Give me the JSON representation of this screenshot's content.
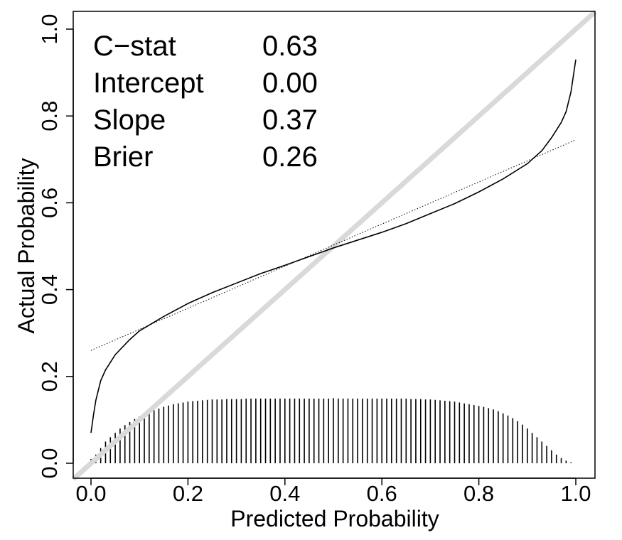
{
  "chart_data": {
    "type": "line",
    "title": "",
    "xlabel": "Predicted Probability",
    "ylabel": "Actual Probability",
    "xlim": [
      0,
      1
    ],
    "ylim": [
      0,
      1
    ],
    "x_ticks": [
      "0.0",
      "0.2",
      "0.4",
      "0.6",
      "0.8",
      "1.0"
    ],
    "y_ticks": [
      "0.0",
      "0.2",
      "0.4",
      "0.6",
      "0.8",
      "1.0"
    ],
    "grid": false,
    "stats": [
      {
        "label": "C−stat",
        "value": "0.63"
      },
      {
        "label": "Intercept",
        "value": "0.00"
      },
      {
        "label": "Slope",
        "value": "0.37"
      },
      {
        "label": "Brier",
        "value": "0.26"
      }
    ],
    "reference_line": {
      "x": [
        0,
        1
      ],
      "y": [
        0,
        1
      ],
      "color": "#d9d9d9"
    },
    "series": [
      {
        "style": "solid",
        "color": "#000000",
        "x": [
          0.0,
          0.005,
          0.01,
          0.02,
          0.03,
          0.05,
          0.08,
          0.1,
          0.15,
          0.2,
          0.25,
          0.3,
          0.35,
          0.4,
          0.45,
          0.5,
          0.55,
          0.6,
          0.65,
          0.7,
          0.75,
          0.8,
          0.85,
          0.9,
          0.93,
          0.95,
          0.97,
          0.98,
          0.99,
          1.0
        ],
        "y": [
          0.07,
          0.11,
          0.145,
          0.19,
          0.215,
          0.25,
          0.285,
          0.305,
          0.338,
          0.368,
          0.393,
          0.415,
          0.437,
          0.456,
          0.476,
          0.496,
          0.514,
          0.532,
          0.552,
          0.575,
          0.598,
          0.625,
          0.655,
          0.69,
          0.72,
          0.75,
          0.785,
          0.81,
          0.855,
          0.93
        ]
      },
      {
        "style": "dotted",
        "color": "#000000",
        "x": [
          0.0,
          1.0
        ],
        "y": [
          0.26,
          0.745
        ]
      }
    ],
    "rug": {
      "x": [
        0.0,
        0.01,
        0.02,
        0.03,
        0.04,
        0.05,
        0.06,
        0.07,
        0.08,
        0.09,
        0.1,
        0.11,
        0.12,
        0.13,
        0.14,
        0.15,
        0.16,
        0.17,
        0.18,
        0.19,
        0.2,
        0.21,
        0.22,
        0.23,
        0.24,
        0.25,
        0.26,
        0.27,
        0.28,
        0.29,
        0.3,
        0.31,
        0.32,
        0.33,
        0.34,
        0.35,
        0.36,
        0.37,
        0.38,
        0.39,
        0.4,
        0.41,
        0.42,
        0.43,
        0.44,
        0.45,
        0.46,
        0.47,
        0.48,
        0.49,
        0.5,
        0.51,
        0.52,
        0.53,
        0.54,
        0.55,
        0.56,
        0.57,
        0.58,
        0.59,
        0.6,
        0.61,
        0.62,
        0.63,
        0.64,
        0.65,
        0.66,
        0.67,
        0.68,
        0.69,
        0.7,
        0.71,
        0.72,
        0.73,
        0.74,
        0.75,
        0.76,
        0.77,
        0.78,
        0.79,
        0.8,
        0.81,
        0.82,
        0.83,
        0.84,
        0.85,
        0.86,
        0.87,
        0.88,
        0.89,
        0.9,
        0.91,
        0.92,
        0.93,
        0.94,
        0.95,
        0.96,
        0.97,
        0.98,
        0.99
      ],
      "height": [
        0.01,
        0.02,
        0.035,
        0.05,
        0.06,
        0.07,
        0.08,
        0.088,
        0.095,
        0.102,
        0.108,
        0.113,
        0.118,
        0.122,
        0.126,
        0.13,
        0.133,
        0.136,
        0.138,
        0.14,
        0.142,
        0.143,
        0.144,
        0.145,
        0.146,
        0.147,
        0.147,
        0.147,
        0.148,
        0.148,
        0.148,
        0.148,
        0.149,
        0.149,
        0.149,
        0.149,
        0.149,
        0.149,
        0.149,
        0.149,
        0.149,
        0.149,
        0.149,
        0.149,
        0.149,
        0.149,
        0.149,
        0.149,
        0.149,
        0.149,
        0.15,
        0.149,
        0.149,
        0.149,
        0.149,
        0.149,
        0.149,
        0.149,
        0.149,
        0.149,
        0.149,
        0.149,
        0.149,
        0.149,
        0.149,
        0.149,
        0.148,
        0.148,
        0.148,
        0.147,
        0.147,
        0.146,
        0.145,
        0.144,
        0.143,
        0.142,
        0.14,
        0.138,
        0.136,
        0.134,
        0.132,
        0.13,
        0.127,
        0.124,
        0.12,
        0.115,
        0.11,
        0.104,
        0.097,
        0.089,
        0.08,
        0.07,
        0.06,
        0.05,
        0.04,
        0.03,
        0.02,
        0.012,
        0.006,
        0.002
      ]
    }
  }
}
